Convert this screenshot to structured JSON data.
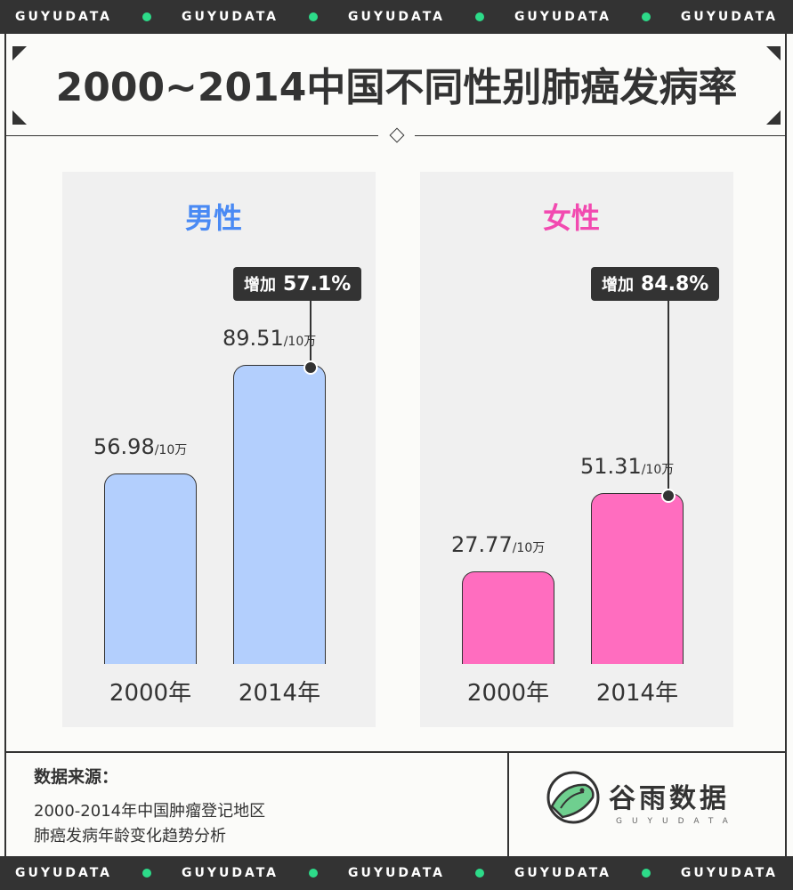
{
  "stripe": {
    "items": [
      "GUYUDATA",
      "GUYUDATA",
      "GUYUDATA",
      "GUYUDATA",
      "GUYUDATA"
    ]
  },
  "title": "2000~2014中国不同性别肺癌发病率",
  "unit": "/10万",
  "badge_label": "增加",
  "chart_data": [
    {
      "type": "bar",
      "title": "男性",
      "categories": [
        "2000年",
        "2014年"
      ],
      "values": [
        56.98,
        89.51
      ],
      "value_labels": [
        "56.98",
        "89.51"
      ],
      "increase": "57.1%",
      "color": "#b3cffd",
      "title_color": "#4a8af4"
    },
    {
      "type": "bar",
      "title": "女性",
      "categories": [
        "2000年",
        "2014年"
      ],
      "values": [
        27.77,
        51.31
      ],
      "value_labels": [
        "27.77",
        "51.31"
      ],
      "increase": "84.8%",
      "color": "#ff6dbf",
      "title_color": "#f24ab0"
    }
  ],
  "footer": {
    "source_title": "数据来源：",
    "source_lines": [
      "2000-2014年中国肿瘤登记地区",
      "肺癌发病年龄变化趋势分析"
    ],
    "logo_text": "谷雨数据",
    "logo_sub": "GUYUDATA"
  }
}
